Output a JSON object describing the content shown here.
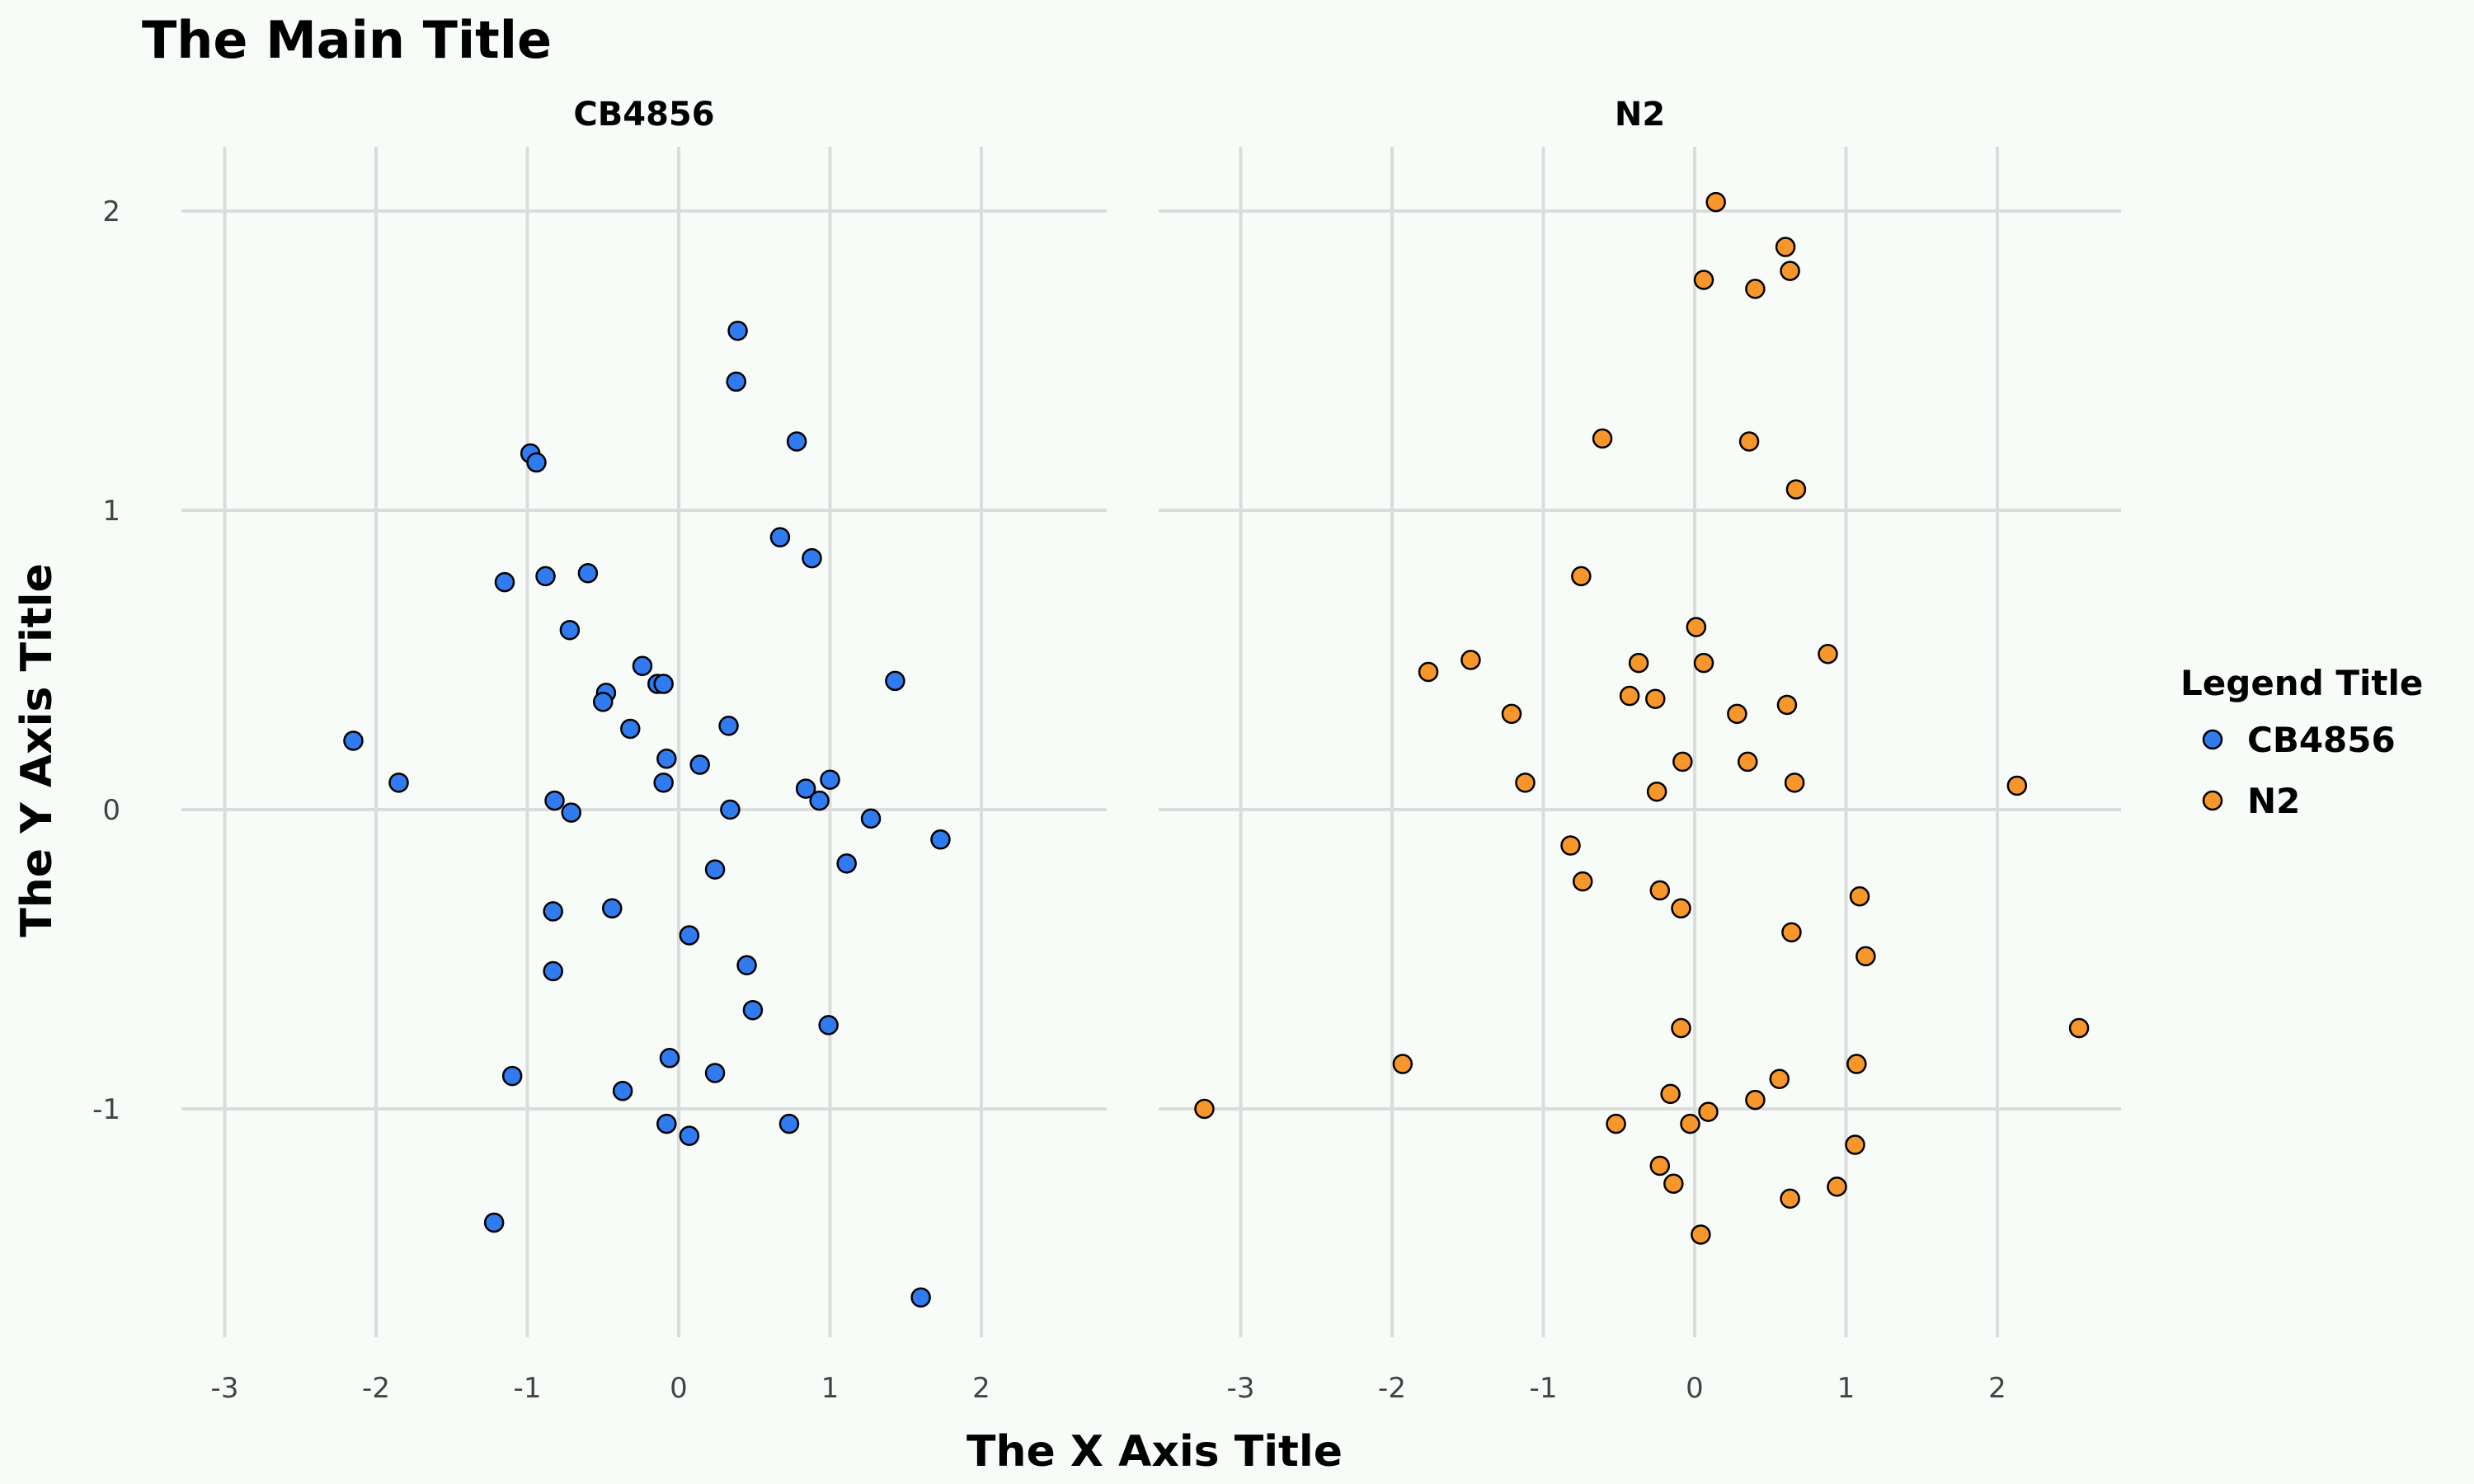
{
  "chart_data": {
    "type": "scatter",
    "title": "The Main Title",
    "xlabel": "The X Axis Title",
    "ylabel": "The Y Axis Title",
    "xlim": [
      -3.5,
      2.8
    ],
    "ylim": [
      -1.75,
      2.2
    ],
    "xticks": [
      -3,
      -2,
      -1,
      0,
      1,
      2
    ],
    "xtick_labels": [
      "-3",
      "-2",
      "-1",
      "0",
      "1",
      "2"
    ],
    "yticks": [
      -1,
      0,
      1,
      2
    ],
    "ytick_labels": [
      "-1",
      "0",
      "1",
      "2"
    ],
    "grid": true,
    "legend": {
      "title": "Legend Title",
      "position": "right",
      "entries": [
        {
          "label": "CB4856",
          "color": "#2f7bef"
        },
        {
          "label": "N2",
          "color": "#f7962a"
        }
      ]
    },
    "panels": [
      {
        "label": "CB4856",
        "series": "CB4856",
        "color": "#2f7bef",
        "points": [
          [
            0.39,
            1.6
          ],
          [
            0.38,
            1.43
          ],
          [
            0.78,
            1.23
          ],
          [
            -0.98,
            1.19
          ],
          [
            -0.94,
            1.16
          ],
          [
            0.67,
            0.91
          ],
          [
            0.88,
            0.84
          ],
          [
            -0.6,
            0.79
          ],
          [
            -0.88,
            0.78
          ],
          [
            -1.15,
            0.76
          ],
          [
            -0.72,
            0.6
          ],
          [
            -0.24,
            0.48
          ],
          [
            -0.14,
            0.42
          ],
          [
            -0.1,
            0.42
          ],
          [
            -0.48,
            0.39
          ],
          [
            -0.5,
            0.36
          ],
          [
            1.43,
            0.43
          ],
          [
            -0.32,
            0.27
          ],
          [
            0.33,
            0.28
          ],
          [
            -0.08,
            0.17
          ],
          [
            0.14,
            0.15
          ],
          [
            -2.15,
            0.23
          ],
          [
            -1.85,
            0.09
          ],
          [
            -0.1,
            0.09
          ],
          [
            1.0,
            0.1
          ],
          [
            0.84,
            0.07
          ],
          [
            0.93,
            0.03
          ],
          [
            -0.82,
            0.03
          ],
          [
            -0.71,
            -0.01
          ],
          [
            0.34,
            0.0
          ],
          [
            1.27,
            -0.03
          ],
          [
            1.73,
            -0.1
          ],
          [
            1.11,
            -0.18
          ],
          [
            0.24,
            -0.2
          ],
          [
            -0.44,
            -0.33
          ],
          [
            -0.83,
            -0.34
          ],
          [
            0.07,
            -0.42
          ],
          [
            0.45,
            -0.52
          ],
          [
            -0.83,
            -0.54
          ],
          [
            0.49,
            -0.67
          ],
          [
            0.99,
            -0.72
          ],
          [
            -0.06,
            -0.83
          ],
          [
            0.24,
            -0.88
          ],
          [
            -1.1,
            -0.89
          ],
          [
            -0.37,
            -0.94
          ],
          [
            -0.08,
            -1.05
          ],
          [
            0.73,
            -1.05
          ],
          [
            0.07,
            -1.09
          ],
          [
            -1.22,
            -1.38
          ],
          [
            1.6,
            -1.63
          ]
        ]
      },
      {
        "label": "N2",
        "series": "N2",
        "color": "#f7962a",
        "points": [
          [
            0.14,
            2.03
          ],
          [
            0.6,
            1.88
          ],
          [
            0.06,
            1.77
          ],
          [
            0.63,
            1.8
          ],
          [
            0.4,
            1.74
          ],
          [
            -0.61,
            1.24
          ],
          [
            0.36,
            1.23
          ],
          [
            0.67,
            1.07
          ],
          [
            -0.75,
            0.78
          ],
          [
            0.01,
            0.61
          ],
          [
            -1.48,
            0.5
          ],
          [
            -1.76,
            0.46
          ],
          [
            -0.37,
            0.49
          ],
          [
            0.06,
            0.49
          ],
          [
            0.88,
            0.52
          ],
          [
            -0.43,
            0.38
          ],
          [
            -0.26,
            0.37
          ],
          [
            0.61,
            0.35
          ],
          [
            -1.21,
            0.32
          ],
          [
            0.28,
            0.32
          ],
          [
            -0.08,
            0.16
          ],
          [
            0.35,
            0.16
          ],
          [
            -1.12,
            0.09
          ],
          [
            0.66,
            0.09
          ],
          [
            -0.25,
            0.06
          ],
          [
            2.13,
            0.08
          ],
          [
            -0.82,
            -0.12
          ],
          [
            -0.74,
            -0.24
          ],
          [
            -0.23,
            -0.27
          ],
          [
            -0.09,
            -0.33
          ],
          [
            1.09,
            -0.29
          ],
          [
            0.64,
            -0.41
          ],
          [
            1.13,
            -0.49
          ],
          [
            2.54,
            -0.73
          ],
          [
            -0.09,
            -0.73
          ],
          [
            -1.93,
            -0.85
          ],
          [
            1.07,
            -0.85
          ],
          [
            0.56,
            -0.9
          ],
          [
            -0.16,
            -0.95
          ],
          [
            0.4,
            -0.97
          ],
          [
            -3.24,
            -1.0
          ],
          [
            0.09,
            -1.01
          ],
          [
            -0.52,
            -1.05
          ],
          [
            -0.03,
            -1.05
          ],
          [
            1.06,
            -1.12
          ],
          [
            -0.23,
            -1.19
          ],
          [
            -0.14,
            -1.25
          ],
          [
            0.94,
            -1.26
          ],
          [
            0.63,
            -1.3
          ],
          [
            0.04,
            -1.42
          ]
        ]
      }
    ]
  }
}
